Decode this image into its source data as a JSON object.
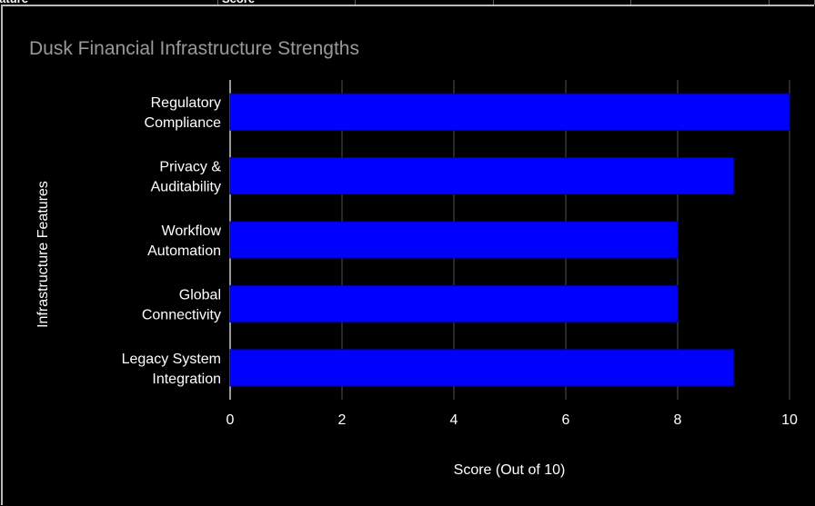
{
  "sheet_header": {
    "columns": [
      "Feature",
      "Score",
      "",
      "",
      "",
      ""
    ]
  },
  "chart_data": {
    "type": "bar",
    "orientation": "horizontal",
    "title": "Dusk Financial Infrastructure Strengths",
    "xlabel": "Score (Out of 10)",
    "ylabel": "Infrastructure Features",
    "categories": [
      [
        "Regulatory",
        "Compliance"
      ],
      [
        "Privacy &",
        "Auditability"
      ],
      [
        "Workflow",
        "Automation"
      ],
      [
        "Global",
        "Connectivity"
      ],
      [
        "Legacy System",
        "Integration"
      ]
    ],
    "values": [
      10,
      9,
      8,
      8,
      9
    ],
    "xlim": [
      0,
      10
    ],
    "xticks": [
      "0",
      "2",
      "4",
      "6",
      "8",
      "10"
    ],
    "grid": true,
    "bar_color": "#0000ff",
    "background": "#000000"
  }
}
